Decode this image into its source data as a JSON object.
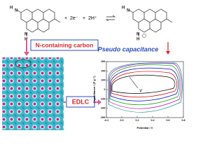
{
  "reaction": {
    "left_atoms": [
      "H",
      "N",
      "N",
      "H"
    ],
    "plus_1": "+",
    "electrons": "2e⁻",
    "plus_2": "+",
    "protons": "2H⁺",
    "right_atoms": [
      "H",
      "N",
      "N",
      "H"
    ]
  },
  "labels": {
    "carbon": "N-containing carbon",
    "pseudo": "Pseudo capacitance",
    "edlc": "EDLC"
  },
  "cv_plot": {
    "x_label": "Potential / V",
    "y_label": "Capacitance / (F g⁻¹)",
    "arrow_label": "V",
    "xlim": [
      -0.2,
      0.8
    ],
    "xticks": [
      {
        "value": -0.2,
        "label": "-0.2"
      },
      {
        "value": 0,
        "label": "0.0"
      },
      {
        "value": 0.2,
        "label": "0.2"
      },
      {
        "value": 0.4,
        "label": "0.4"
      },
      {
        "value": 0.6,
        "label": "0.6"
      },
      {
        "value": 0.8,
        "label": "0.8"
      }
    ],
    "ylim": [
      -300,
      300
    ],
    "yticks": [
      -300,
      -200,
      -100,
      0,
      100,
      200,
      300
    ]
  }
}
